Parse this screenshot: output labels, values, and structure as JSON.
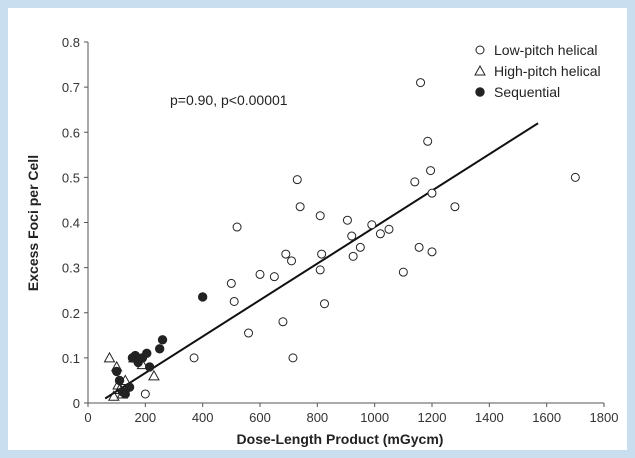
{
  "chart_data": {
    "type": "scatter",
    "xlabel": "Dose-Length Product (mGycm)",
    "ylabel": "Excess Foci per Cell",
    "xlim": [
      0,
      1800
    ],
    "ylim": [
      0,
      0.8
    ],
    "x_ticks": [
      "0",
      "200",
      "400",
      "600",
      "800",
      "1000",
      "1200",
      "1400",
      "1600",
      "1800"
    ],
    "y_ticks": [
      "0",
      "0.1",
      "0.2",
      "0.3",
      "0.4",
      "0.5",
      "0.6",
      "0.7",
      "0.8"
    ],
    "annotation": "p=0.90, p<0.00001",
    "legend_position": "top-right",
    "series": [
      {
        "name": "Low-pitch helical",
        "marker": "open-circle",
        "points": [
          [
            200,
            0.02
          ],
          [
            370,
            0.1
          ],
          [
            500,
            0.265
          ],
          [
            510,
            0.225
          ],
          [
            520,
            0.39
          ],
          [
            560,
            0.155
          ],
          [
            600,
            0.285
          ],
          [
            650,
            0.28
          ],
          [
            680,
            0.18
          ],
          [
            690,
            0.33
          ],
          [
            710,
            0.315
          ],
          [
            715,
            0.1
          ],
          [
            730,
            0.495
          ],
          [
            740,
            0.435
          ],
          [
            810,
            0.415
          ],
          [
            810,
            0.295
          ],
          [
            815,
            0.33
          ],
          [
            825,
            0.22
          ],
          [
            905,
            0.405
          ],
          [
            920,
            0.37
          ],
          [
            925,
            0.325
          ],
          [
            950,
            0.345
          ],
          [
            990,
            0.395
          ],
          [
            1020,
            0.375
          ],
          [
            1050,
            0.385
          ],
          [
            1100,
            0.29
          ],
          [
            1140,
            0.49
          ],
          [
            1155,
            0.345
          ],
          [
            1160,
            0.71
          ],
          [
            1185,
            0.58
          ],
          [
            1195,
            0.515
          ],
          [
            1200,
            0.465
          ],
          [
            1200,
            0.335
          ],
          [
            1280,
            0.435
          ],
          [
            1700,
            0.5
          ]
        ]
      },
      {
        "name": "High-pitch helical",
        "marker": "open-triangle",
        "points": [
          [
            75,
            0.1
          ],
          [
            90,
            0.015
          ],
          [
            100,
            0.08
          ],
          [
            105,
            0.04
          ],
          [
            110,
            0.03
          ],
          [
            120,
            0.02
          ],
          [
            130,
            0.05
          ],
          [
            160,
            0.1
          ],
          [
            190,
            0.085
          ],
          [
            230,
            0.06
          ]
        ]
      },
      {
        "name": "Sequential",
        "marker": "filled-circle",
        "points": [
          [
            100,
            0.07
          ],
          [
            110,
            0.05
          ],
          [
            120,
            0.025
          ],
          [
            130,
            0.02
          ],
          [
            145,
            0.035
          ],
          [
            155,
            0.1
          ],
          [
            165,
            0.105
          ],
          [
            175,
            0.09
          ],
          [
            190,
            0.1
          ],
          [
            205,
            0.11
          ],
          [
            215,
            0.08
          ],
          [
            250,
            0.12
          ],
          [
            260,
            0.14
          ],
          [
            400,
            0.235
          ]
        ]
      }
    ],
    "fit_line": {
      "x": [
        60,
        1570
      ],
      "y": [
        0.01,
        0.62
      ]
    },
    "colors": {
      "marker": "#222222",
      "line": "#111111",
      "axis": "#555555",
      "background": "#c9dff0"
    }
  }
}
